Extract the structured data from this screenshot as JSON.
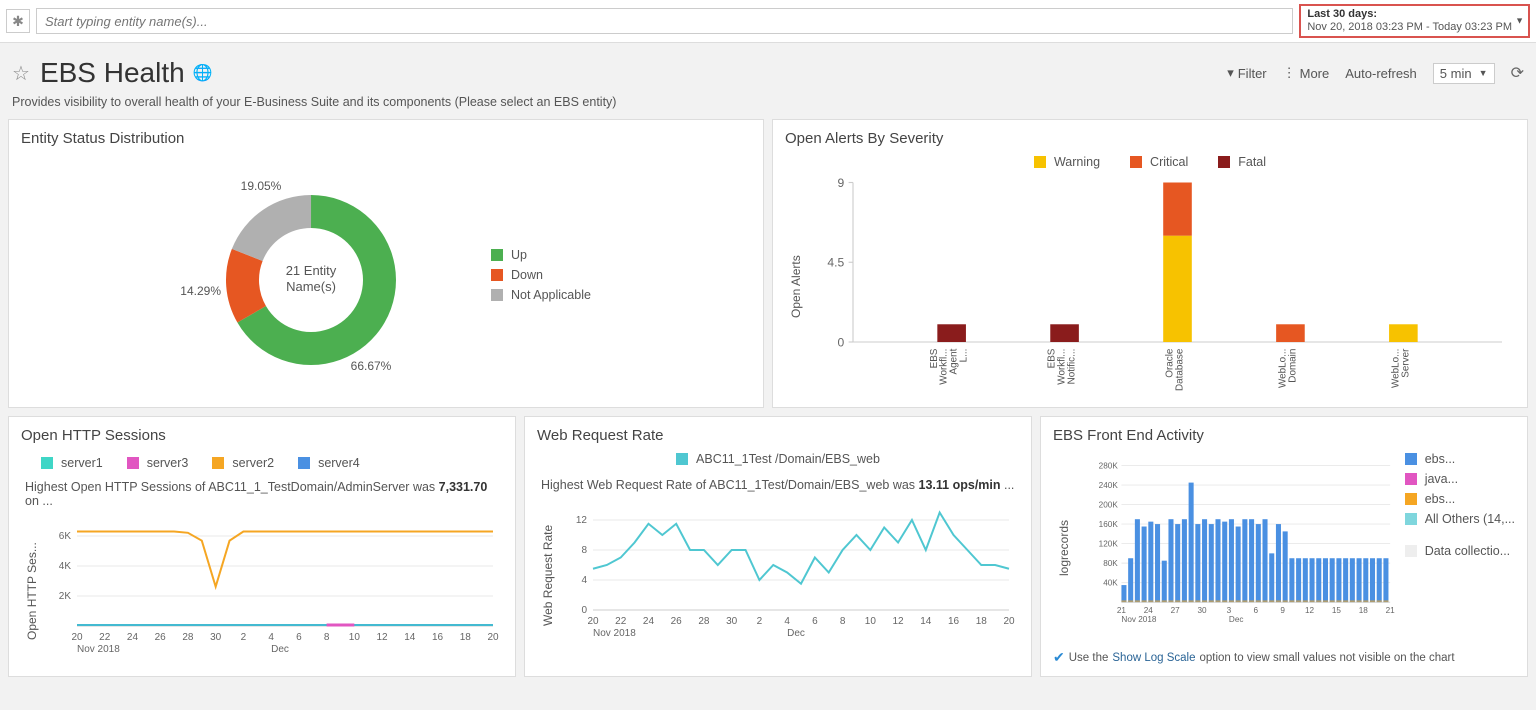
{
  "topbar": {
    "search_placeholder": "Start typing entity name(s)...",
    "daterange_title": "Last 30 days:",
    "daterange_detail": "Nov 20, 2018 03:23 PM - Today 03:23 PM"
  },
  "header": {
    "title": "EBS Health",
    "filter": "Filter",
    "more": "More",
    "autorefresh_label": "Auto-refresh",
    "autorefresh_value": "5 min"
  },
  "subtitle": "Provides visibility to overall health of your E-Business Suite and its components (Please select an EBS entity)",
  "colors": {
    "up": "#4caf50",
    "down": "#e65722",
    "na": "#b0b0b0",
    "warning": "#f7c200",
    "critical": "#e65722",
    "fatal": "#8a1c1c",
    "server1": "#3fd6c6",
    "server2": "#f5a623",
    "server3": "#e156c1",
    "server4": "#4a90e2",
    "web_line": "#4fc7d1",
    "bar_blue": "#4a90e2",
    "grid": "#e8e8e8"
  },
  "donut": {
    "title": "Entity Status Distribution",
    "center_line1": "21 Entity",
    "center_line2": "Name(s)",
    "slices": [
      {
        "label": "Up",
        "pct": 66.67,
        "color": "#4caf50"
      },
      {
        "label": "Down",
        "pct": 14.29,
        "color": "#e65722"
      },
      {
        "label": "Not Applicable",
        "pct": 19.05,
        "color": "#b0b0b0"
      }
    ],
    "pct_labels": {
      "up": "66.67%",
      "down": "14.29%",
      "na": "19.05%"
    }
  },
  "alerts": {
    "title": "Open Alerts By Severity",
    "y_label": "Open Alerts",
    "legend": [
      {
        "label": "Warning",
        "color": "#f7c200"
      },
      {
        "label": "Critical",
        "color": "#e65722"
      },
      {
        "label": "Fatal",
        "color": "#8a1c1c"
      }
    ],
    "y_ticks": [
      "0",
      "4.5",
      "9"
    ],
    "y_max": 9,
    "categories": [
      {
        "label": "EBS Workfl... Agent L...",
        "stacks": [
          {
            "c": "#8a1c1c",
            "v": 1
          }
        ]
      },
      {
        "label": "EBS Workfl... Notific...",
        "stacks": [
          {
            "c": "#8a1c1c",
            "v": 1
          }
        ]
      },
      {
        "label": "Oracle Database",
        "stacks": [
          {
            "c": "#f7c200",
            "v": 6
          },
          {
            "c": "#e65722",
            "v": 3
          }
        ]
      },
      {
        "label": "WebLo... Domain",
        "stacks": [
          {
            "c": "#e65722",
            "v": 1
          }
        ]
      },
      {
        "label": "WebLo... Server",
        "stacks": [
          {
            "c": "#f7c200",
            "v": 1
          }
        ]
      }
    ]
  },
  "http": {
    "title": "Open HTTP Sessions",
    "legend": [
      {
        "label": "server1",
        "color": "#3fd6c6"
      },
      {
        "label": "server3",
        "color": "#e156c1"
      },
      {
        "label": "server2",
        "color": "#f5a623"
      },
      {
        "label": "server4",
        "color": "#4a90e2"
      }
    ],
    "caption_prefix": "Highest Open HTTP Sessions of ",
    "caption_entity": "ABC11_1_Test",
    "caption_suffix1": "Domain/AdminServer was ",
    "caption_value": "7,331.70",
    "caption_suffix2": " on ...",
    "y_label": "Open HTTP Ses...",
    "y_ticks": [
      "2K",
      "4K",
      "6K"
    ],
    "y_max": 8000,
    "x_ticks": [
      "20",
      "22",
      "24",
      "26",
      "28",
      "30",
      "2",
      "4",
      "6",
      "8",
      "10",
      "12",
      "14",
      "16",
      "18",
      "20"
    ],
    "x_sub": {
      "0": "Nov 2018",
      "7": "Dec"
    },
    "series2": [
      7200,
      7200,
      7200,
      7200,
      7200,
      7200,
      7200,
      7200,
      7100,
      6500,
      3000,
      6500,
      7200,
      7200,
      7200,
      7200,
      7200,
      7200,
      7200,
      7200,
      7200,
      7200,
      7200,
      7200,
      7200,
      7200,
      7200,
      7200,
      7200,
      7200,
      7200
    ],
    "baseline_color": "#4a90e2",
    "pink_segment": {
      "from": 18,
      "to": 20,
      "color": "#e156c1"
    }
  },
  "web": {
    "title": "Web Request Rate",
    "legend": [
      {
        "label": "ABC11_1Test /Domain/EBS_web",
        "color": "#4fc7d1"
      }
    ],
    "caption_prefix": "Highest Web Request Rate of ",
    "caption_entity": "ABC11_1Test",
    "caption_suffix1": "/Domain/EBS_web was ",
    "caption_value": "13.11 ops/min",
    "caption_suffix2": " ...",
    "y_label": "Web Request Rate",
    "y_ticks": [
      "0",
      "4",
      "8",
      "12"
    ],
    "y_max": 14,
    "x_ticks": [
      "20",
      "22",
      "24",
      "26",
      "28",
      "30",
      "2",
      "4",
      "6",
      "8",
      "10",
      "12",
      "14",
      "16",
      "18",
      "20"
    ],
    "x_sub": {
      "0": "Nov 2018",
      "7": "Dec"
    },
    "series": [
      5.5,
      6,
      7,
      9,
      11.5,
      10,
      11.5,
      8,
      8,
      6,
      8,
      8,
      4,
      6,
      5,
      3.5,
      7,
      5,
      8,
      10,
      8,
      11,
      9,
      12,
      8,
      13,
      10,
      8,
      6,
      6,
      5.5
    ]
  },
  "front": {
    "title": "EBS Front End Activity",
    "y_label": "logrecords",
    "y_ticks": [
      "40K",
      "80K",
      "120K",
      "160K",
      "200K",
      "240K",
      "280K"
    ],
    "y_max": 280000,
    "x_ticks": [
      "21",
      "24",
      "27",
      "30",
      "3",
      "6",
      "9",
      "12",
      "15",
      "18",
      "21"
    ],
    "x_sub": {
      "0": "Nov 2018",
      "4": "Dec"
    },
    "legend": [
      {
        "label": "ebs...",
        "color": "#4a90e2"
      },
      {
        "label": "java...",
        "color": "#e156c1"
      },
      {
        "label": "ebs...",
        "color": "#f5a623"
      },
      {
        "label": "All Others (14,...",
        "color": "#7fd6dd"
      }
    ],
    "note_prefix": "Use the ",
    "note_link": "Show Log Scale",
    "note_suffix": " option to view small values not visible on the chart",
    "note_badge": "Data collectio...",
    "bars": [
      35,
      90,
      170,
      155,
      165,
      160,
      85,
      170,
      160,
      170,
      245,
      160,
      170,
      160,
      170,
      165,
      170,
      155,
      170,
      170,
      160,
      170,
      100,
      160,
      145,
      90,
      90,
      90,
      90,
      90,
      90,
      90,
      90,
      90,
      90,
      90,
      90,
      90,
      90,
      90
    ]
  }
}
